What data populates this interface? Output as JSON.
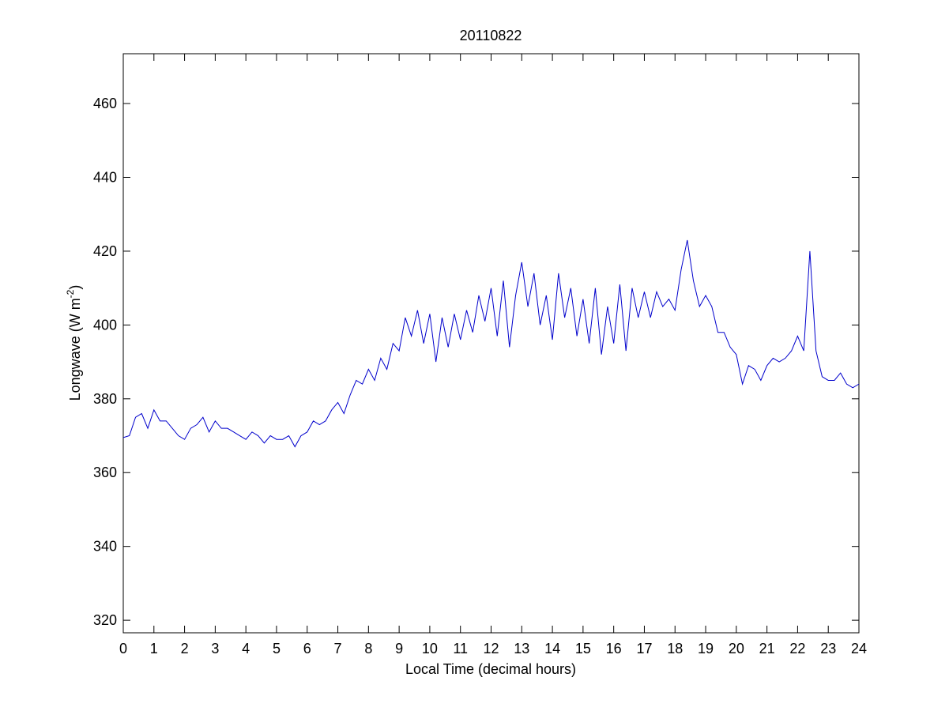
{
  "chart_data": {
    "type": "line",
    "title": "20110822",
    "xlabel": "Local Time (decimal hours)",
    "ylabel_parts": [
      "Longwave (W m",
      "-2",
      ")"
    ],
    "x": [
      0,
      0.2,
      0.4,
      0.6,
      0.8,
      1,
      1.2,
      1.4,
      1.6,
      1.8,
      2,
      2.2,
      2.4,
      2.6,
      2.8,
      3,
      3.2,
      3.4,
      3.6,
      3.8,
      4,
      4.2,
      4.4,
      4.6,
      4.8,
      5,
      5.2,
      5.4,
      5.6,
      5.8,
      6,
      6.2,
      6.4,
      6.6,
      6.8,
      7,
      7.2,
      7.4,
      7.6,
      7.8,
      8,
      8.2,
      8.4,
      8.6,
      8.8,
      9,
      9.2,
      9.4,
      9.6,
      9.8,
      10,
      10.2,
      10.4,
      10.6,
      10.8,
      11,
      11.2,
      11.4,
      11.6,
      11.8,
      12,
      12.2,
      12.4,
      12.6,
      12.8,
      13,
      13.2,
      13.4,
      13.6,
      13.8,
      14,
      14.2,
      14.4,
      14.6,
      14.8,
      15,
      15.2,
      15.4,
      15.6,
      15.8,
      16,
      16.2,
      16.4,
      16.6,
      16.8,
      17,
      17.2,
      17.4,
      17.6,
      17.8,
      18,
      18.2,
      18.4,
      18.6,
      18.8,
      19,
      19.2,
      19.4,
      19.6,
      19.8,
      20,
      20.2,
      20.4,
      20.6,
      20.8,
      21,
      21.2,
      21.4,
      21.6,
      21.8,
      22,
      22.2,
      22.4,
      22.6,
      22.8,
      23,
      23.2,
      23.4,
      23.6,
      23.8,
      24
    ],
    "series": [
      {
        "color": "#0000cc",
        "values": [
          369.5,
          370,
          375,
          376,
          372,
          377,
          374,
          374,
          372,
          370,
          369,
          372,
          373,
          375,
          371,
          374,
          372,
          372,
          371,
          370,
          369,
          371,
          370,
          368,
          370,
          369,
          369,
          370,
          367,
          370,
          371,
          374,
          373,
          374,
          377,
          379,
          376,
          381,
          385,
          384,
          388,
          385,
          391,
          388,
          395,
          393,
          402,
          397,
          404,
          395,
          403,
          390,
          402,
          394,
          403,
          396,
          404,
          398,
          408,
          401,
          410,
          397,
          412,
          394,
          408,
          417,
          405,
          414,
          400,
          408,
          396,
          414,
          402,
          410,
          397,
          407,
          395,
          410,
          392,
          405,
          395,
          411,
          393,
          410,
          402,
          409,
          402,
          409,
          405,
          407,
          404,
          415,
          423,
          412,
          405,
          408,
          405,
          398,
          398,
          394,
          392,
          384,
          389,
          388,
          385,
          389,
          391,
          390,
          391,
          393,
          397,
          393,
          420,
          393,
          386,
          385,
          385,
          387,
          384,
          383,
          384
        ]
      }
    ],
    "xlim": [
      0,
      24
    ],
    "ylim": [
      316.6,
      473.5
    ],
    "xticks": [
      0,
      1,
      2,
      3,
      4,
      5,
      6,
      7,
      8,
      9,
      10,
      11,
      12,
      13,
      14,
      15,
      16,
      17,
      18,
      19,
      20,
      21,
      22,
      23,
      24
    ],
    "yticks": [
      320,
      340,
      360,
      380,
      400,
      420,
      440,
      460
    ]
  }
}
